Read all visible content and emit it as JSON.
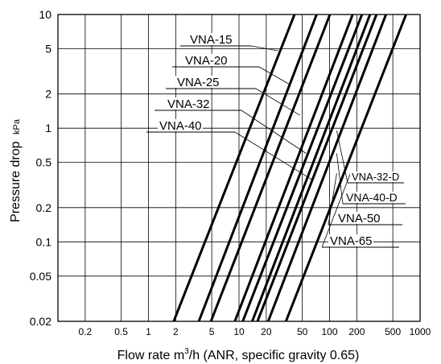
{
  "chart_data": {
    "type": "line",
    "x_scale": "log",
    "y_scale": "log",
    "xlim": [
      0.1,
      1000
    ],
    "ylim": [
      0.02,
      10
    ],
    "grid": true,
    "xlabel_parts": [
      "Flow rate m",
      "3",
      "/h (ANR, specific gravity 0.65)"
    ],
    "ylabel": "Pressure drop",
    "ylabel_unit": "kPa",
    "x_ticks": [
      {
        "value": 0.2,
        "label": "0.2"
      },
      {
        "value": 0.5,
        "label": "0.5"
      },
      {
        "value": 1,
        "label": "1"
      },
      {
        "value": 2,
        "label": "2"
      },
      {
        "value": 5,
        "label": "5"
      },
      {
        "value": 10,
        "label": "10"
      },
      {
        "value": 20,
        "label": "20"
      },
      {
        "value": 50,
        "label": "50"
      },
      {
        "value": 100,
        "label": "100"
      },
      {
        "value": 200,
        "label": "200"
      },
      {
        "value": 500,
        "label": "500"
      },
      {
        "value": 1000,
        "label": "1000"
      }
    ],
    "y_ticks": [
      {
        "value": 0.02,
        "label": "0.02"
      },
      {
        "value": 0.05,
        "label": "0.05"
      },
      {
        "value": 0.1,
        "label": "0.1"
      },
      {
        "value": 0.2,
        "label": "0.2"
      },
      {
        "value": 0.5,
        "label": "0.5"
      },
      {
        "value": 1,
        "label": "1"
      },
      {
        "value": 2,
        "label": "2"
      },
      {
        "value": 5,
        "label": "5"
      },
      {
        "value": 10,
        "label": "10"
      }
    ],
    "series": [
      {
        "name": "VNA-15",
        "x": [
          1.9,
          41
        ],
        "y": [
          0.02,
          10
        ]
      },
      {
        "name": "VNA-20",
        "x": [
          3.6,
          72
        ],
        "y": [
          0.02,
          10
        ]
      },
      {
        "name": "VNA-25",
        "x": [
          4.9,
          101
        ],
        "y": [
          0.02,
          10
        ]
      },
      {
        "name": "VNA-32",
        "x": [
          9.0,
          180
        ],
        "y": [
          0.02,
          10
        ]
      },
      {
        "name": "VNA-40",
        "x": [
          11,
          228
        ],
        "y": [
          0.02,
          10
        ]
      },
      {
        "name": "VNA-32-D",
        "x": [
          14,
          280
        ],
        "y": [
          0.02,
          10
        ]
      },
      {
        "name": "VNA-40-D",
        "x": [
          16,
          330
        ],
        "y": [
          0.02,
          10
        ]
      },
      {
        "name": "VNA-50",
        "x": [
          21,
          420
        ],
        "y": [
          0.02,
          10
        ]
      },
      {
        "name": "VNA-65",
        "x": [
          33,
          700
        ],
        "y": [
          0.02,
          10
        ]
      }
    ],
    "annotations": [
      {
        "text": "VNA-15",
        "series": "VNA-15",
        "x": 27,
        "y": 4.8
      },
      {
        "text": "VNA-20",
        "series": "VNA-20",
        "x": 37,
        "y": 2.4
      },
      {
        "text": "VNA-25",
        "series": "VNA-25",
        "x": 47,
        "y": 1.3
      },
      {
        "text": "VNA-32",
        "series": "VNA-32",
        "x": 55,
        "y": 0.6
      },
      {
        "text": "VNA-40",
        "series": "VNA-40",
        "x": 65,
        "y": 0.35
      },
      {
        "text": "VNA-32-D",
        "series": "VNA-32-D",
        "x": 120,
        "y": 0.95
      },
      {
        "text": "VNA-40-D",
        "series": "VNA-40-D",
        "x": 120,
        "y": 0.6
      },
      {
        "text": "VNA-50",
        "series": "VNA-50",
        "x": 120,
        "y": 0.4
      },
      {
        "text": "VNA-65",
        "series": "VNA-65",
        "x": 170,
        "y": 0.4
      }
    ]
  }
}
